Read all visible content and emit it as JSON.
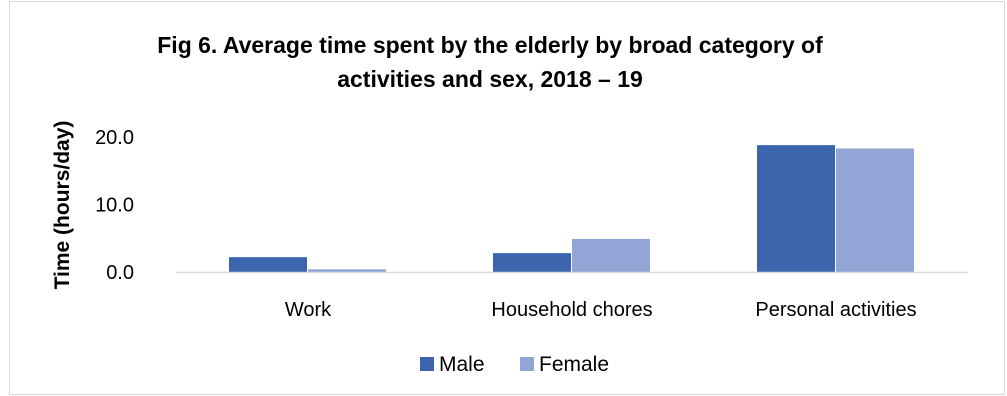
{
  "chart_data": {
    "type": "bar",
    "title": "Fig 6. Average time spent by the elderly by broad category of activities and sex, 2018 – 19",
    "title_lines": [
      "Fig 6. Average time spent by the elderly by broad category of",
      "activities and sex, 2018 – 19"
    ],
    "xlabel": "",
    "ylabel": "Time (hours/day)",
    "categories": [
      "Work",
      "Household chores",
      "Personal activities"
    ],
    "series": [
      {
        "name": "Male",
        "color": "#3c65ae",
        "values": [
          2.2,
          2.8,
          18.8
        ]
      },
      {
        "name": "Female",
        "color": "#91a6d6",
        "values": [
          0.4,
          4.9,
          18.3
        ]
      }
    ],
    "yticks": [
      "0.0",
      "10.0",
      "20.0"
    ],
    "ytick_values": [
      0,
      10,
      20
    ],
    "ylim": [
      0,
      20
    ],
    "grid": false,
    "legend_position": "bottom"
  }
}
